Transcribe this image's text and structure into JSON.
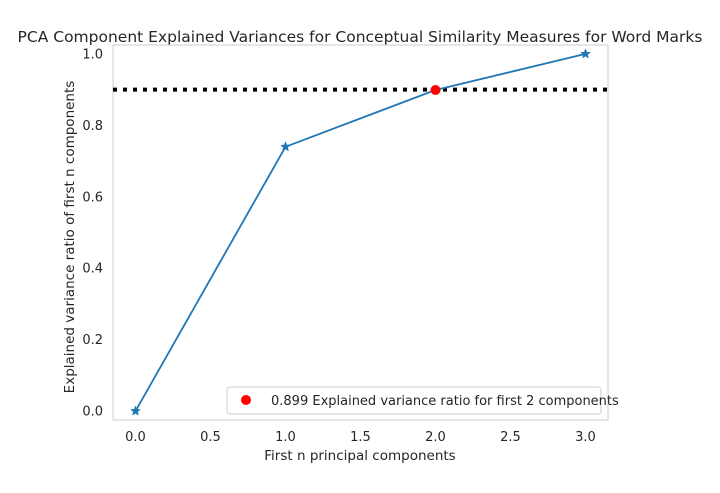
{
  "chart_data": {
    "type": "line",
    "title": "PCA Component Explained Variances for Conceptual Similarity Measures for Word Marks",
    "xlabel": "First n principal components",
    "ylabel": "Explained variance ratio of first n components",
    "xlim": [
      -0.15,
      3.15
    ],
    "ylim": [
      -0.025,
      1.025
    ],
    "grid": false,
    "x_ticks": [
      0.0,
      0.5,
      1.0,
      1.5,
      2.0,
      2.5,
      3.0
    ],
    "x_tick_labels": [
      "0.0",
      "0.5",
      "1.0",
      "1.5",
      "2.0",
      "2.5",
      "3.0"
    ],
    "y_ticks": [
      0.0,
      0.2,
      0.4,
      0.6,
      0.8,
      1.0
    ],
    "y_tick_labels": [
      "0.0",
      "0.2",
      "0.4",
      "0.6",
      "0.8",
      "1.0"
    ],
    "series": [
      {
        "x": [
          0,
          1,
          2,
          3
        ],
        "values": [
          0.0,
          0.74,
          0.899,
          1.0
        ],
        "color": "#1f77b4",
        "marker": "star"
      }
    ],
    "threshold_line": {
      "y": 0.9,
      "style": "dotted",
      "color": "#000000"
    },
    "highlight_point": {
      "x": 2,
      "y": 0.899,
      "color": "#ff0000"
    },
    "legend": {
      "placement": "lower-right",
      "entries": [
        {
          "label": "0.899 Explained variance ratio for first 2 components",
          "color": "#ff0000",
          "marker": "circle"
        }
      ]
    }
  }
}
